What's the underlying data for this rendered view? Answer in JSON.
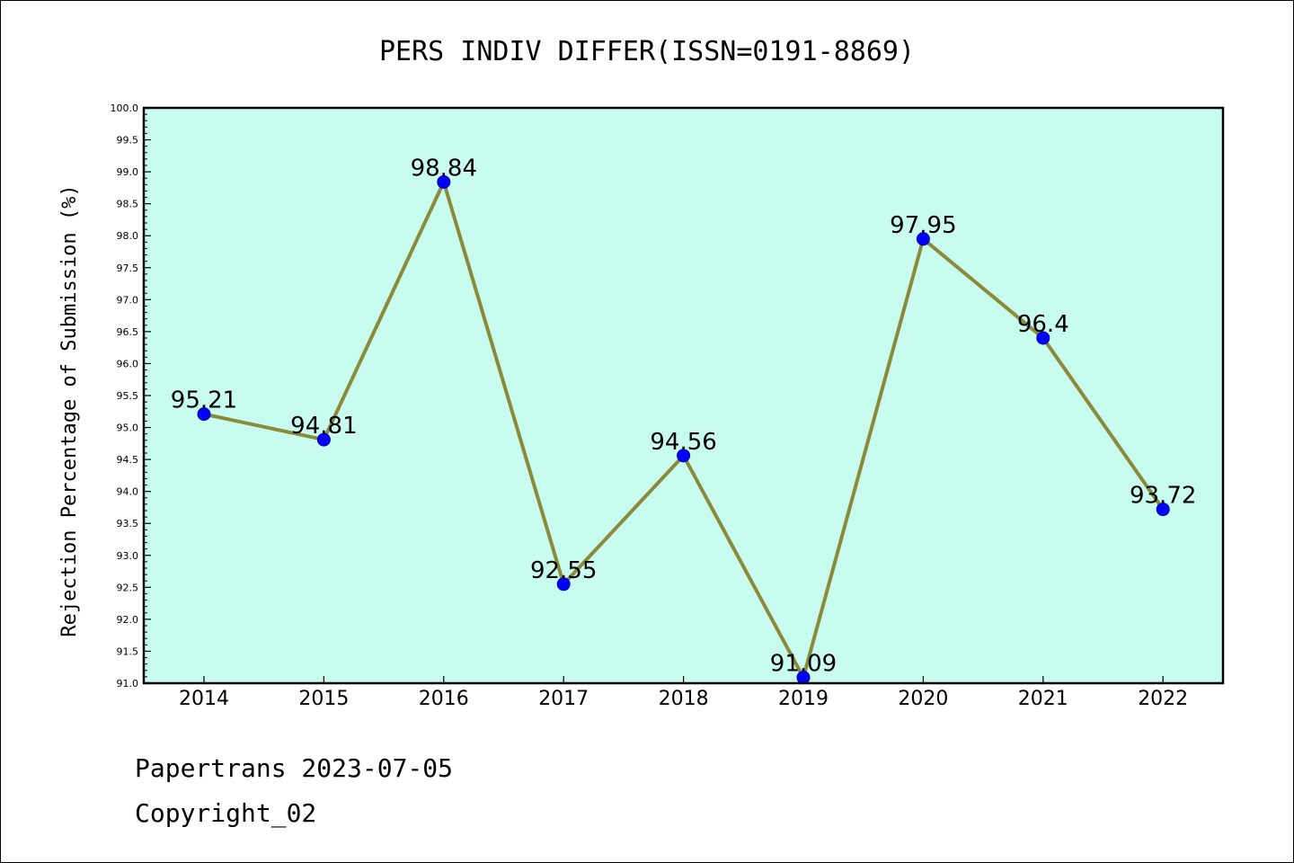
{
  "chart_data": {
    "type": "line",
    "title": "PERS INDIV DIFFER(ISSN=0191-8869)",
    "xlabel": "",
    "ylabel": "Rejection Percentage of Submission (%)",
    "x": [
      "2014",
      "2015",
      "2016",
      "2017",
      "2018",
      "2019",
      "2020",
      "2021",
      "2022"
    ],
    "series": [
      {
        "values": [
          95.21,
          94.81,
          98.84,
          92.55,
          94.56,
          91.09,
          97.95,
          96.4,
          93.72
        ],
        "labels": [
          "95.21",
          "94.81",
          "98.84",
          "92.55",
          "94.56",
          "91.09",
          "97.95",
          "96.4",
          "93.72"
        ]
      }
    ],
    "ylim": [
      91.0,
      100.0
    ],
    "yticks": [
      "91.0",
      "91.5",
      "92.0",
      "92.5",
      "93.0",
      "93.5",
      "94.0",
      "94.5",
      "95.0",
      "95.5",
      "96.0",
      "96.5",
      "97.0",
      "97.5",
      "98.0",
      "98.5",
      "99.0",
      "99.5",
      "100.0"
    ],
    "grid": false,
    "colors": {
      "plot_background": "#c8fcee",
      "line": "#8b8a3a",
      "marker": "#0000ff"
    }
  },
  "footer": {
    "line1": "Papertrans 2023-07-05",
    "line2": "Copyright_02"
  }
}
